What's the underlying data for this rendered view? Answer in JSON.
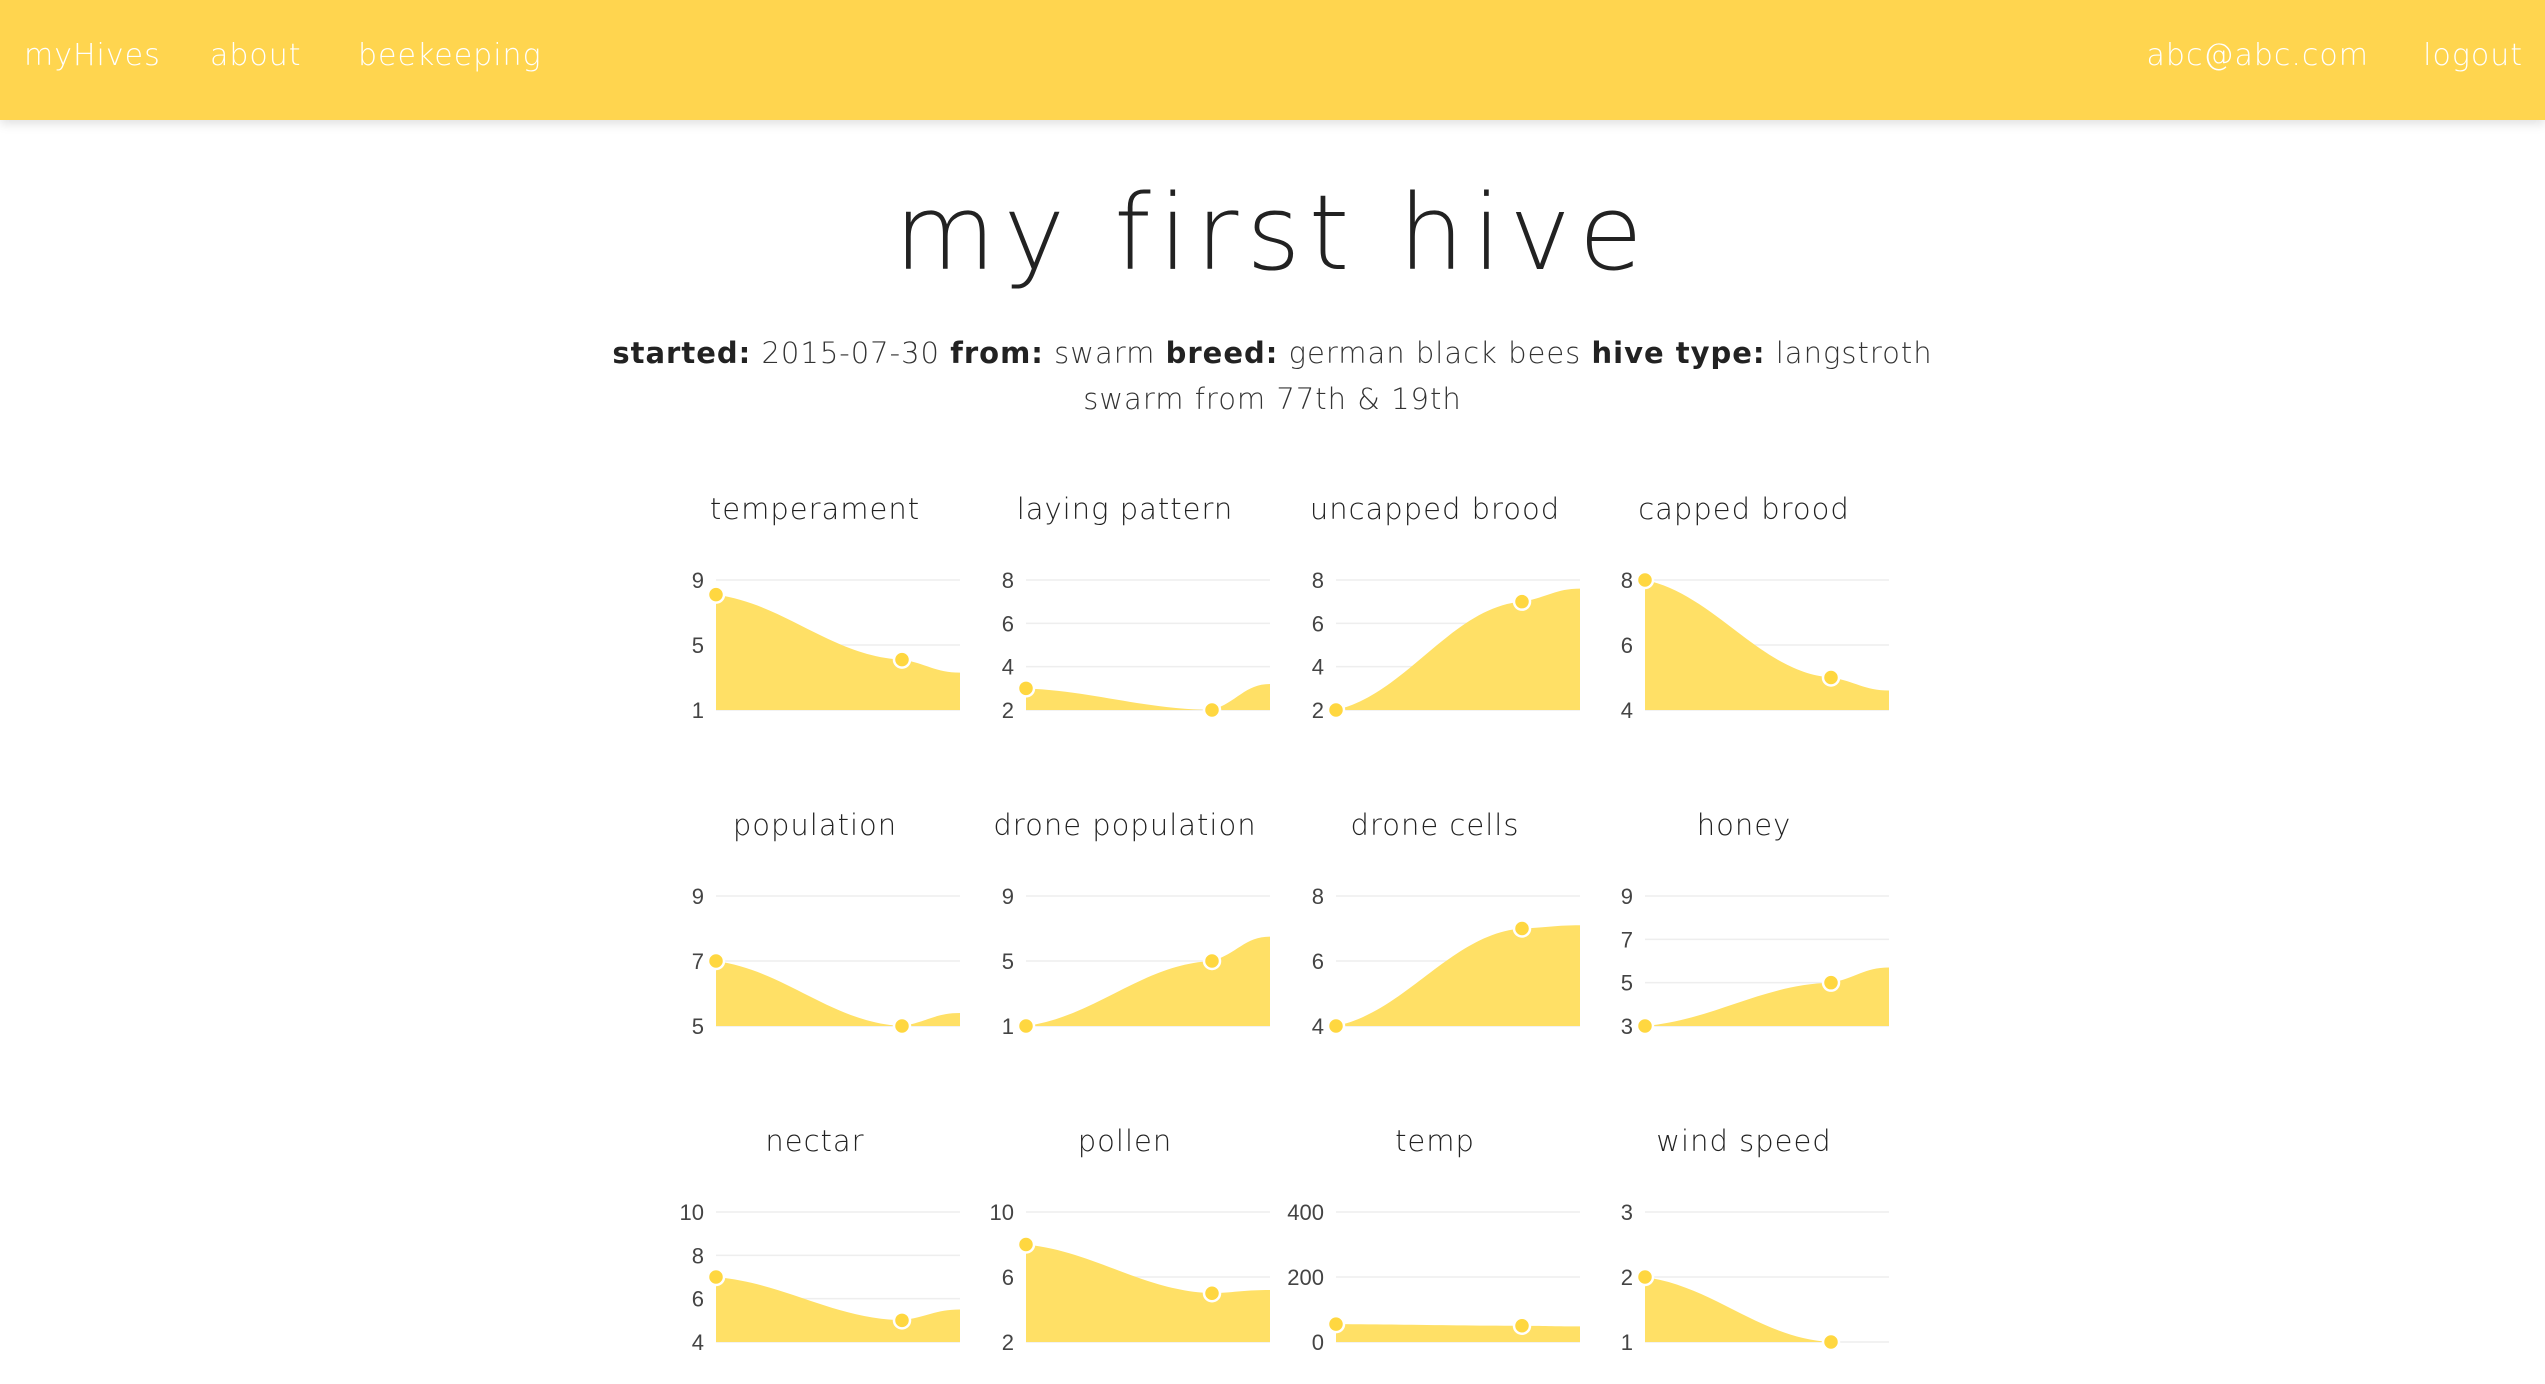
{
  "nav": {
    "brand": "myHives",
    "about": "about",
    "beekeeping": "beekeeping",
    "user_email": "abc@abc.com",
    "logout": "logout"
  },
  "hive": {
    "title": "my first hive",
    "started_label": "started:",
    "started_value": "2015-07-30",
    "from_label": "from:",
    "from_value": "swarm",
    "breed_label": "breed:",
    "breed_value": "german black bees",
    "type_label": "hive type:",
    "type_value": "langstroth",
    "notes": "swarm from 77th & 19th"
  },
  "colors": {
    "topbar": "#ffd54f",
    "chart_fill": "#ffe066",
    "chart_point": "#ffd740",
    "grid": "#eeeeee"
  },
  "chart_data": [
    {
      "type": "area",
      "title": "temperament",
      "y_ticks": [
        "1",
        "5",
        "9"
      ],
      "ylim": [
        1,
        9
      ],
      "points": [
        8.1,
        4.1
      ],
      "end_value": 3.3,
      "grid": true
    },
    {
      "type": "area",
      "title": "laying pattern",
      "y_ticks": [
        "2",
        "4",
        "6",
        "8"
      ],
      "ylim": [
        2,
        8
      ],
      "points": [
        3.0,
        2.0
      ],
      "end_value": 3.2,
      "grid": true
    },
    {
      "type": "area",
      "title": "uncapped brood",
      "y_ticks": [
        "2",
        "4",
        "6",
        "8"
      ],
      "ylim": [
        2,
        8
      ],
      "points": [
        2.0,
        7.0
      ],
      "end_value": 7.6,
      "grid": true
    },
    {
      "type": "area",
      "title": "capped brood",
      "y_ticks": [
        "4",
        "6",
        "8"
      ],
      "ylim": [
        4,
        8
      ],
      "points": [
        8.0,
        5.0
      ],
      "end_value": 4.6,
      "grid": true
    },
    {
      "type": "area",
      "title": "population",
      "y_ticks": [
        "5",
        "7",
        "9"
      ],
      "ylim": [
        5,
        9
      ],
      "points": [
        7.0,
        5.0
      ],
      "end_value": 5.4,
      "grid": true
    },
    {
      "type": "area",
      "title": "drone population",
      "y_ticks": [
        "1",
        "5",
        "9"
      ],
      "ylim": [
        1,
        9
      ],
      "points": [
        1.0,
        5.0
      ],
      "end_value": 6.5,
      "grid": true
    },
    {
      "type": "area",
      "title": "drone cells",
      "y_ticks": [
        "4",
        "6",
        "8"
      ],
      "ylim": [
        4,
        8
      ],
      "points": [
        4.0,
        7.0
      ],
      "end_value": 7.1,
      "grid": true
    },
    {
      "type": "area",
      "title": "honey",
      "y_ticks": [
        "3",
        "5",
        "7",
        "9"
      ],
      "ylim": [
        3,
        9
      ],
      "points": [
        3.0,
        5.0
      ],
      "end_value": 5.7,
      "grid": true
    },
    {
      "type": "area",
      "title": "nectar",
      "y_ticks": [
        "4",
        "6",
        "8",
        "10"
      ],
      "ylim": [
        4,
        10
      ],
      "points": [
        7.0,
        5.0
      ],
      "end_value": 5.5,
      "grid": true
    },
    {
      "type": "area",
      "title": "pollen",
      "y_ticks": [
        "2",
        "6",
        "10"
      ],
      "ylim": [
        2,
        10
      ],
      "points": [
        8.0,
        5.0
      ],
      "end_value": 5.2,
      "grid": true
    },
    {
      "type": "area",
      "title": "temp",
      "y_ticks": [
        "0",
        "200",
        "400"
      ],
      "ylim": [
        0,
        400
      ],
      "points": [
        55,
        50
      ],
      "end_value": 48,
      "grid": true
    },
    {
      "type": "area",
      "title": "wind speed",
      "y_ticks": [
        "1",
        "2",
        "3"
      ],
      "ylim": [
        1,
        3
      ],
      "points": [
        2.0,
        1.0
      ],
      "end_value": 0.9,
      "grid": true
    }
  ]
}
